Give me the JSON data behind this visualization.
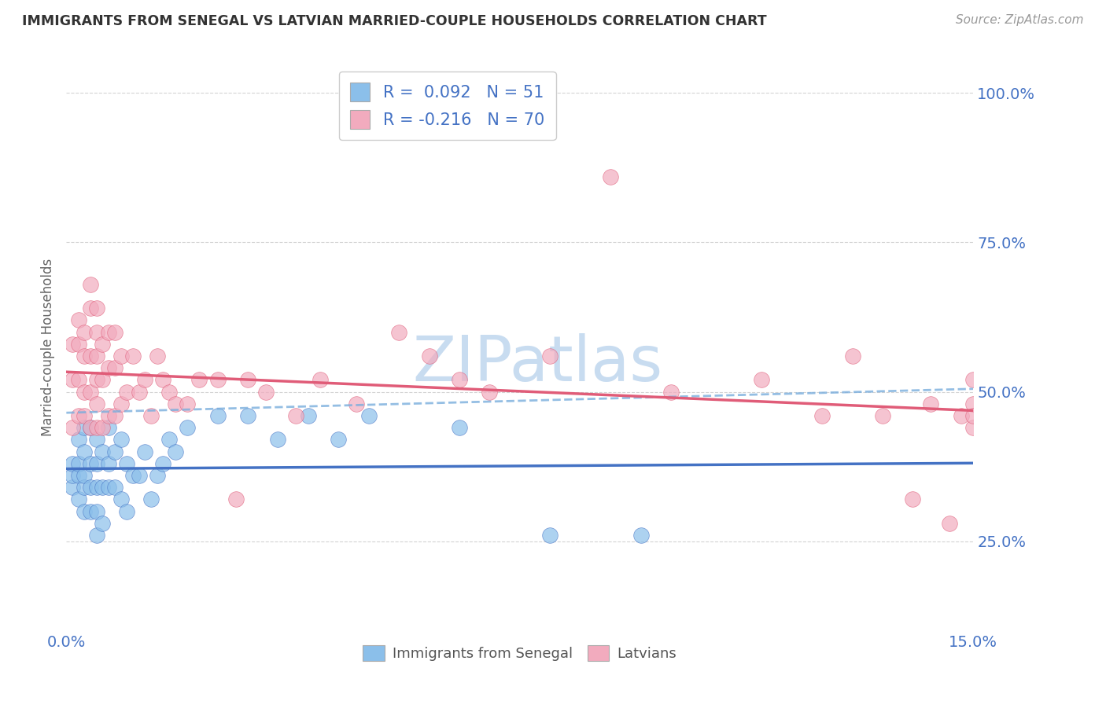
{
  "title": "IMMIGRANTS FROM SENEGAL VS LATVIAN MARRIED-COUPLE HOUSEHOLDS CORRELATION CHART",
  "source_text": "Source: ZipAtlas.com",
  "ylabel": "Married-couple Households",
  "xlim": [
    0.0,
    0.15
  ],
  "ylim": [
    0.1,
    1.05
  ],
  "yticks": [
    0.25,
    0.5,
    0.75,
    1.0
  ],
  "ytick_labels": [
    "25.0%",
    "50.0%",
    "75.0%",
    "100.0%"
  ],
  "xticks": [
    0.0,
    0.15
  ],
  "xtick_labels": [
    "0.0%",
    "15.0%"
  ],
  "blue_r": 0.092,
  "blue_n": 51,
  "pink_r": -0.216,
  "pink_n": 70,
  "blue_color": "#8BBFEA",
  "pink_color": "#F2ABBE",
  "blue_line_color": "#4472C4",
  "pink_line_color": "#E05C78",
  "dashed_line_color": "#7AAEDD",
  "background_color": "#FFFFFF",
  "grid_color": "#C8C8C8",
  "title_color": "#333333",
  "axis_tick_color": "#4472C4",
  "legend_text_color": "#4472C4",
  "watermark": "ZIPatlas",
  "watermark_color": "#C8DCF0",
  "blue_x": [
    0.001,
    0.001,
    0.001,
    0.002,
    0.002,
    0.002,
    0.002,
    0.003,
    0.003,
    0.003,
    0.003,
    0.003,
    0.004,
    0.004,
    0.004,
    0.004,
    0.005,
    0.005,
    0.005,
    0.005,
    0.005,
    0.006,
    0.006,
    0.006,
    0.007,
    0.007,
    0.007,
    0.008,
    0.008,
    0.009,
    0.009,
    0.01,
    0.01,
    0.011,
    0.012,
    0.013,
    0.014,
    0.015,
    0.016,
    0.017,
    0.018,
    0.02,
    0.025,
    0.03,
    0.035,
    0.04,
    0.045,
    0.05,
    0.065,
    0.08,
    0.095
  ],
  "blue_y": [
    0.34,
    0.36,
    0.38,
    0.32,
    0.36,
    0.38,
    0.42,
    0.3,
    0.34,
    0.36,
    0.4,
    0.44,
    0.3,
    0.34,
    0.38,
    0.44,
    0.26,
    0.3,
    0.34,
    0.38,
    0.42,
    0.28,
    0.34,
    0.4,
    0.34,
    0.38,
    0.44,
    0.34,
    0.4,
    0.32,
    0.42,
    0.3,
    0.38,
    0.36,
    0.36,
    0.4,
    0.32,
    0.36,
    0.38,
    0.42,
    0.4,
    0.44,
    0.46,
    0.46,
    0.42,
    0.46,
    0.42,
    0.46,
    0.44,
    0.26,
    0.26
  ],
  "pink_x": [
    0.001,
    0.001,
    0.001,
    0.002,
    0.002,
    0.002,
    0.002,
    0.003,
    0.003,
    0.003,
    0.003,
    0.004,
    0.004,
    0.004,
    0.004,
    0.004,
    0.005,
    0.005,
    0.005,
    0.005,
    0.005,
    0.005,
    0.006,
    0.006,
    0.006,
    0.007,
    0.007,
    0.007,
    0.008,
    0.008,
    0.008,
    0.009,
    0.009,
    0.01,
    0.011,
    0.012,
    0.013,
    0.014,
    0.015,
    0.016,
    0.017,
    0.018,
    0.02,
    0.022,
    0.025,
    0.028,
    0.03,
    0.033,
    0.038,
    0.042,
    0.048,
    0.055,
    0.06,
    0.065,
    0.07,
    0.08,
    0.09,
    0.1,
    0.115,
    0.125,
    0.13,
    0.135,
    0.14,
    0.143,
    0.146,
    0.148,
    0.15,
    0.15,
    0.15,
    0.15
  ],
  "pink_y": [
    0.44,
    0.52,
    0.58,
    0.46,
    0.52,
    0.58,
    0.62,
    0.46,
    0.5,
    0.56,
    0.6,
    0.44,
    0.5,
    0.56,
    0.64,
    0.68,
    0.44,
    0.48,
    0.52,
    0.56,
    0.6,
    0.64,
    0.44,
    0.52,
    0.58,
    0.46,
    0.54,
    0.6,
    0.46,
    0.54,
    0.6,
    0.48,
    0.56,
    0.5,
    0.56,
    0.5,
    0.52,
    0.46,
    0.56,
    0.52,
    0.5,
    0.48,
    0.48,
    0.52,
    0.52,
    0.32,
    0.52,
    0.5,
    0.46,
    0.52,
    0.48,
    0.6,
    0.56,
    0.52,
    0.5,
    0.56,
    0.86,
    0.5,
    0.52,
    0.46,
    0.56,
    0.46,
    0.32,
    0.48,
    0.28,
    0.46,
    0.44,
    0.52,
    0.48,
    0.46
  ]
}
